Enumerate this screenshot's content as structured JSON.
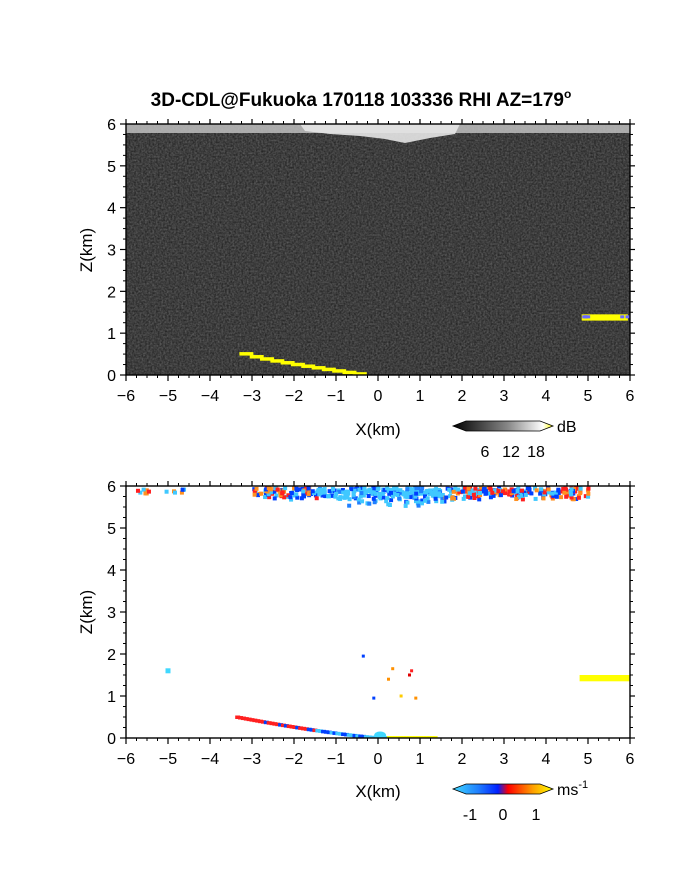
{
  "chart_data": [
    {
      "type": "heatmap",
      "title": "3D-CDL@Fukuoka 170118 103336 RHI AZ=179",
      "title_superscript": "o",
      "xlabel": "X(km)",
      "ylabel": "Z(km)",
      "xlim": [
        -6,
        6
      ],
      "ylim": [
        0,
        6
      ],
      "x_ticks": [
        "-6",
        "-5",
        "-4",
        "-3",
        "-2",
        "-1",
        "0",
        "1",
        "2",
        "3",
        "4",
        "5",
        "6"
      ],
      "y_ticks": [
        "0",
        "1",
        "2",
        "3",
        "4",
        "5",
        "6"
      ],
      "colorbar": {
        "unit": "dB",
        "ticks": [
          "6",
          "12",
          "18"
        ],
        "range": [
          0,
          21
        ]
      },
      "field": "signal-to-noise ratio, grayscale; near-black noise floor across the scan",
      "features": [
        {
          "name": "bright return band",
          "x": [
            -6,
            6
          ],
          "z": [
            5.6,
            6.0
          ],
          "color": "#d8d8d8"
        },
        {
          "name": "ground echo (yellow)",
          "x": [
            -3.3,
            -0.6
          ],
          "z": [
            0.5,
            0.02
          ],
          "color": "#ffff00"
        },
        {
          "name": "cloud/aerosol layer (yellow)",
          "x": [
            4.85,
            5.95
          ],
          "z": [
            1.3,
            1.45
          ],
          "color": "#ffff00"
        }
      ]
    },
    {
      "type": "heatmap",
      "xlabel": "X(km)",
      "ylabel": "Z(km)",
      "xlim": [
        -6,
        6
      ],
      "ylim": [
        0,
        6
      ],
      "x_ticks": [
        "-6",
        "-5",
        "-4",
        "-3",
        "-2",
        "-1",
        "0",
        "1",
        "2",
        "3",
        "4",
        "5",
        "6"
      ],
      "y_ticks": [
        "0",
        "1",
        "2",
        "3",
        "4",
        "5",
        "6"
      ],
      "colorbar": {
        "unit": "ms",
        "unit_superscript": "-1",
        "ticks": [
          "-1",
          "0",
          "1"
        ],
        "range": [
          -1.5,
          1.5
        ]
      },
      "field": "Doppler radial velocity",
      "features": [
        {
          "name": "upper-level velocities",
          "x": [
            -6,
            5
          ],
          "z": [
            5.6,
            6.0
          ],
          "colors": [
            "#40c8ff",
            "#0040ff",
            "#ff2020",
            "#ff9020"
          ]
        },
        {
          "name": "ground echo velocities",
          "x": [
            -3.4,
            1.3
          ],
          "z": [
            0.5,
            0.0
          ],
          "colors": [
            "#ff2020",
            "#0040ff",
            "#40c8ff",
            "#ffff00"
          ]
        },
        {
          "name": "cloud layer velocity",
          "x": [
            4.8,
            6.0
          ],
          "z": [
            1.35,
            1.5
          ],
          "color": "#ffff00"
        },
        {
          "name": "isolated points",
          "points": [
            [
              -5.0,
              1.6
            ],
            [
              -0.35,
              1.95
            ],
            [
              0.35,
              1.65
            ],
            [
              0.25,
              1.4
            ],
            [
              0.8,
              1.6
            ],
            [
              0.75,
              1.5
            ],
            [
              0.55,
              1.0
            ],
            [
              0.9,
              0.95
            ],
            [
              -0.1,
              0.95
            ]
          ]
        }
      ]
    }
  ]
}
